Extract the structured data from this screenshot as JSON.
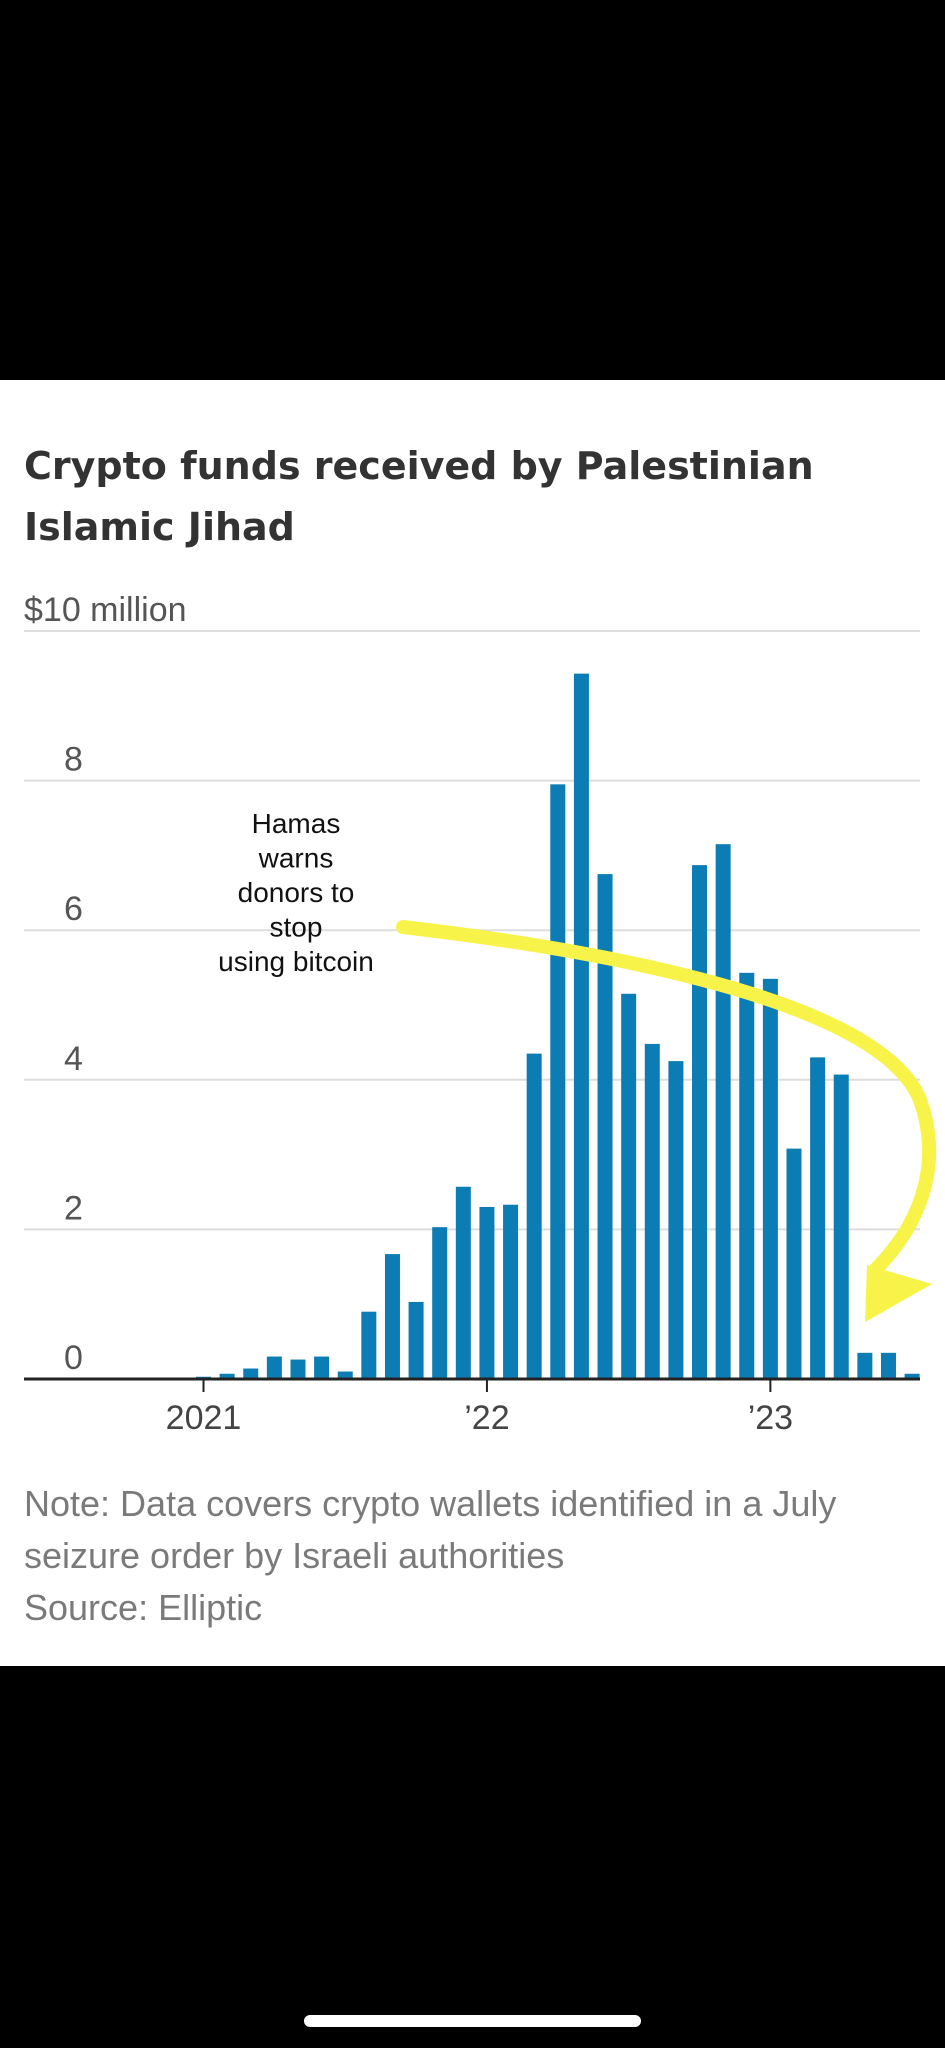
{
  "chart_data": {
    "type": "bar",
    "title": "Crypto funds received by Palestinian Islamic Jihad",
    "ylabel": "$10 million",
    "ylim": [
      0,
      10
    ],
    "yticks": [
      0,
      2,
      4,
      6,
      8
    ],
    "xlabel": "",
    "x_tick_labels": [
      {
        "label": "2021",
        "category_index": 0
      },
      {
        "label": "’22",
        "category_index": 12
      },
      {
        "label": "’23",
        "category_index": 24
      }
    ],
    "categories": [
      "Jan 2021",
      "Feb 2021",
      "Mar 2021",
      "Apr 2021",
      "May 2021",
      "Jun 2021",
      "Jul 2021",
      "Aug 2021",
      "Sep 2021",
      "Oct 2021",
      "Nov 2021",
      "Dec 2021",
      "Jan 2022",
      "Feb 2022",
      "Mar 2022",
      "Apr 2022",
      "May 2022",
      "Jun 2022",
      "Jul 2022",
      "Aug 2022",
      "Sep 2022",
      "Oct 2022",
      "Nov 2022",
      "Dec 2022",
      "Jan 2023",
      "Feb 2023",
      "Mar 2023",
      "Apr 2023",
      "May 2023",
      "Jun 2023",
      "Jul 2023"
    ],
    "values": [
      0.03,
      0.07,
      0.14,
      0.3,
      0.26,
      0.3,
      0.1,
      0.9,
      1.67,
      1.03,
      2.03,
      2.57,
      2.3,
      2.33,
      4.35,
      7.95,
      9.43,
      6.75,
      5.15,
      4.48,
      4.25,
      6.87,
      7.15,
      5.43,
      5.35,
      3.08,
      4.3,
      4.07,
      0.35,
      0.35,
      0.07
    ],
    "bar_color": "#0c7cb5",
    "annotation": {
      "lines": [
        "Hamas",
        "warns",
        "donors to",
        "stop",
        "using bitcoin"
      ],
      "arrow_color": "#f8f349"
    }
  },
  "note": {
    "line1": "Note: Data covers crypto wallets identified in a July",
    "line2": "seizure order by Israeli authorities",
    "source": "Source: Elliptic"
  }
}
